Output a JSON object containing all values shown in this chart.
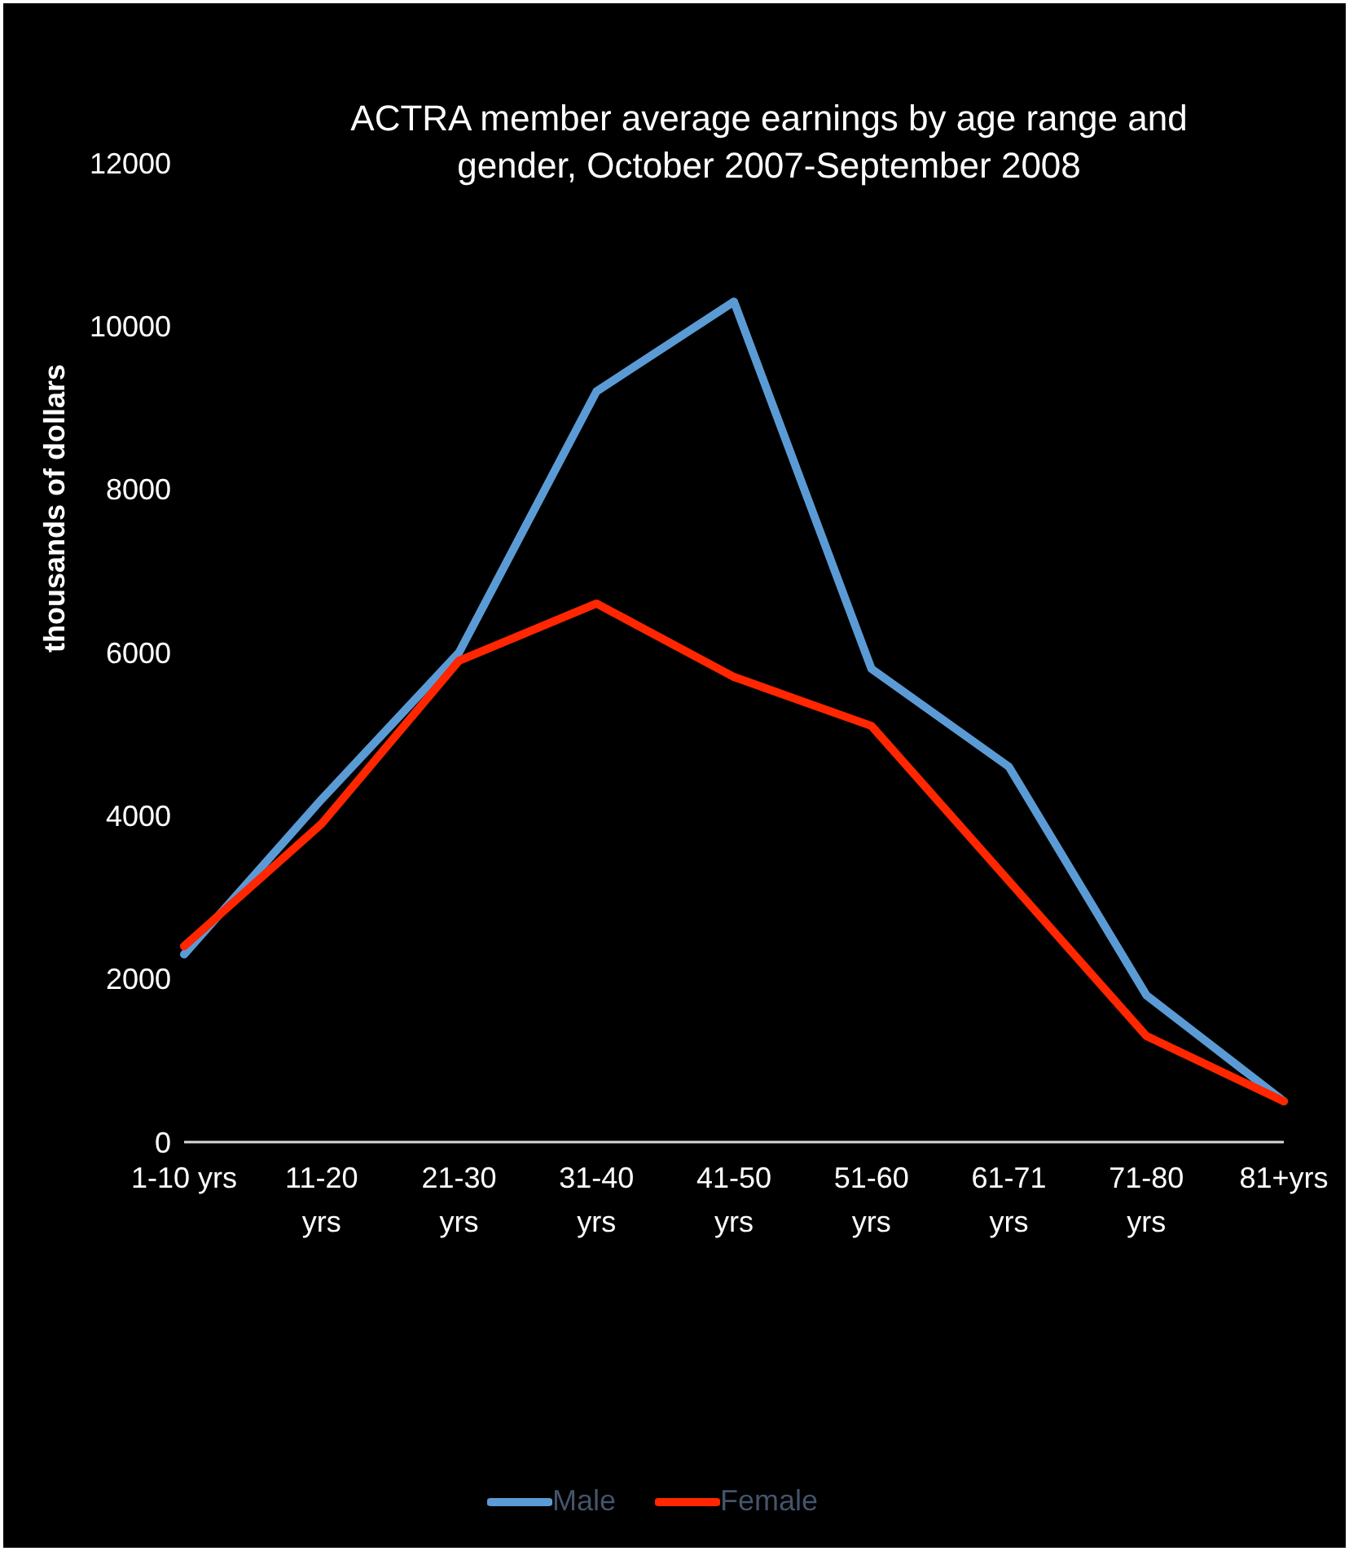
{
  "chart_data": {
    "type": "line",
    "title": "ACTRA member average earnings by age range and gender, October 2007-September 2008",
    "ylabel": "thousands of dollars",
    "categories": [
      "1-10 yrs",
      "11-20 yrs",
      "21-30 yrs",
      "31-40 yrs",
      "41-50 yrs",
      "51-60 yrs",
      "61-71 yrs",
      "71-80 yrs",
      "81+yrs"
    ],
    "series": [
      {
        "name": "Male",
        "color": "#5b9bd5",
        "values": [
          2300,
          4200,
          6000,
          9200,
          10300,
          5800,
          4600,
          1800,
          500
        ]
      },
      {
        "name": "Female",
        "color": "#ff2600",
        "values": [
          2400,
          3900,
          5900,
          6600,
          5700,
          5100,
          3200,
          1300,
          500
        ]
      }
    ],
    "ylim": [
      0,
      12000
    ],
    "yticks": [
      0,
      2000,
      4000,
      6000,
      8000,
      10000,
      12000
    ],
    "grid": false,
    "legend": "bottom",
    "marker": "none",
    "line_style": "solid"
  }
}
